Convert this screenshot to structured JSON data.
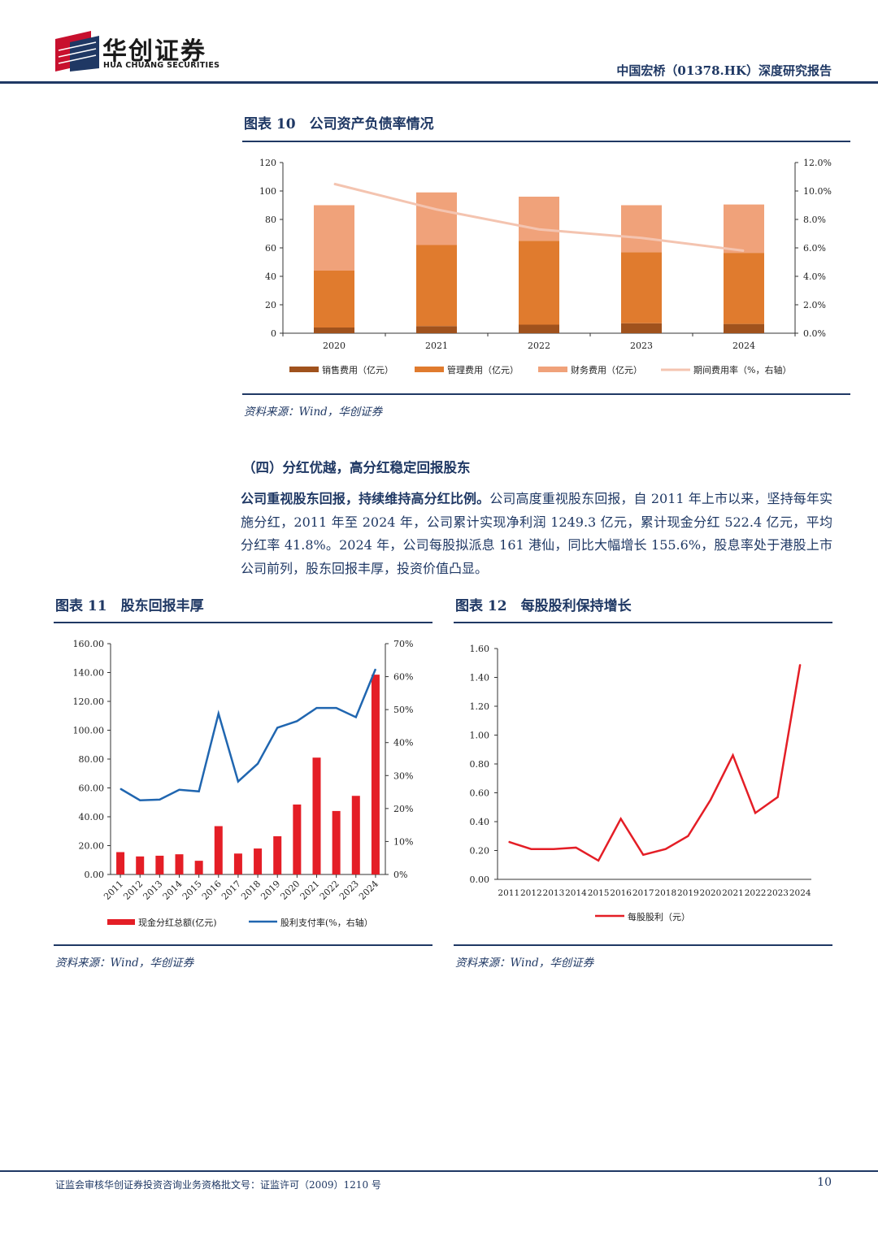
{
  "header": {
    "logo_cn": "华创证券",
    "logo_en": "HUA CHUANG SECURITIES",
    "report_title": "中国宏桥（01378.HK）深度研究报告"
  },
  "fig10": {
    "title": "图表 10　公司资产负债率情况",
    "source": "资料来源：Wind，华创证券"
  },
  "section": {
    "title": "（四）分红优越，高分红稳定回报股东",
    "para_bold": "公司重视股东回报，持续维持高分红比例。",
    "para_text": "公司高度重视股东回报，自 2011 年上市以来，坚持每年实施分红，2011 年至 2024 年，公司累计实现净利润 1249.3 亿元，累计现金分红 522.4 亿元，平均分红率 41.8%。2024 年，公司每股拟派息 161 港仙，同比大幅增长 155.6%，股息率处于港股上市公司前列，股东回报丰厚，投资价值凸显。"
  },
  "fig11": {
    "title": "图表 11　股东回报丰厚",
    "source": "资料来源：Wind，华创证券"
  },
  "fig12": {
    "title": "图表 12　每股股利保持增长",
    "source": "资料来源：Wind，华创证券"
  },
  "footer": {
    "text": "证监会审核华创证券投资咨询业务资格批文号：证监许可（2009）1210 号",
    "page": "10"
  },
  "chart_data": [
    {
      "type": "bar",
      "stacked": true,
      "categories": [
        "2020",
        "2021",
        "2022",
        "2023",
        "2024"
      ],
      "series": [
        {
          "name": "销售费用（亿元）",
          "values": [
            4,
            5,
            6,
            7,
            6.5
          ],
          "color": "#a0521d"
        },
        {
          "name": "管理费用（亿元）",
          "values": [
            40,
            57,
            59,
            50,
            50
          ],
          "color": "#e07b2e"
        },
        {
          "name": "财务费用（亿元）",
          "values": [
            46,
            37,
            31,
            33,
            34
          ],
          "color": "#f0a27a"
        }
      ],
      "line_series": {
        "name": "期间费用率（%，右轴）",
        "values": [
          10.5,
          8.7,
          7.3,
          6.7,
          5.8
        ],
        "color": "#f4c4b0"
      },
      "ylim": [
        0,
        120
      ],
      "yticks": [
        "0",
        "20",
        "40",
        "60",
        "80",
        "100",
        "120"
      ],
      "y2lim": [
        0,
        12
      ],
      "y2ticks": [
        "0.0%",
        "2.0%",
        "4.0%",
        "6.0%",
        "8.0%",
        "10.0%",
        "12.0%"
      ],
      "legend": "bottom"
    },
    {
      "type": "bar",
      "categories": [
        "2011",
        "2012",
        "2013",
        "2014",
        "2015",
        "2016",
        "2017",
        "2018",
        "2019",
        "2020",
        "2021",
        "2022",
        "2023",
        "2024"
      ],
      "series": [
        {
          "name": "现金分红总额(亿元)",
          "values": [
            15.5,
            12.5,
            13,
            14,
            9.5,
            33.5,
            14.5,
            18,
            26.5,
            48.5,
            81,
            44,
            54.5,
            138.5
          ],
          "color": "#e41e26"
        }
      ],
      "line_series": {
        "name": "股利支付率(%，右轴）",
        "values": [
          26,
          22.5,
          22.7,
          25.7,
          25.2,
          48.8,
          28.2,
          33.6,
          44.5,
          46.5,
          50.5,
          50.5,
          47.7,
          62.3
        ],
        "color": "#2066b0"
      },
      "ylim": [
        0,
        160
      ],
      "yticks": [
        "0.00",
        "20.00",
        "40.00",
        "60.00",
        "80.00",
        "100.00",
        "120.00",
        "140.00",
        "160.00"
      ],
      "y2lim": [
        0,
        70
      ],
      "y2ticks": [
        "0%",
        "10%",
        "20%",
        "30%",
        "40%",
        "50%",
        "60%",
        "70%"
      ],
      "legend": "bottom"
    },
    {
      "type": "line",
      "x": [
        "2011",
        "2012",
        "2013",
        "2014",
        "2015",
        "2016",
        "2017",
        "2018",
        "2019",
        "2020",
        "2021",
        "2022",
        "2023",
        "2024"
      ],
      "series": [
        {
          "name": "每股股利（元）",
          "values": [
            0.26,
            0.21,
            0.21,
            0.22,
            0.13,
            0.42,
            0.17,
            0.21,
            0.3,
            0.55,
            0.86,
            0.46,
            0.57,
            1.49
          ],
          "color": "#e41e26"
        }
      ],
      "ylim": [
        0,
        1.6
      ],
      "yticks": [
        "0.00",
        "0.20",
        "0.40",
        "0.60",
        "0.80",
        "1.00",
        "1.20",
        "1.40",
        "1.60"
      ],
      "legend": "bottom"
    }
  ]
}
